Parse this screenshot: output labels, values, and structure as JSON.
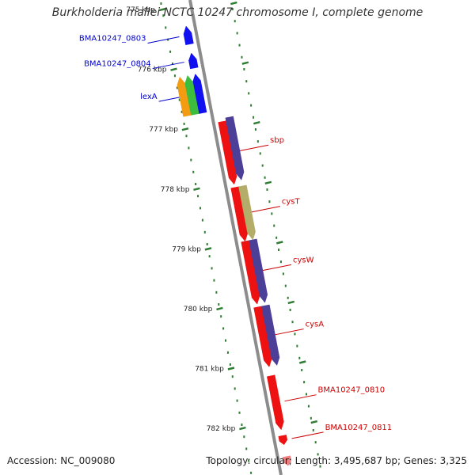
{
  "title": "Burkholderia mallei NCTC 10247 chromosome I, complete genome",
  "footer": {
    "accession": "Accession: NC_009080",
    "summary": "Topology: circular; Length: 3,495,687 bp; Genes: 3,325"
  },
  "colors": {
    "backbone": "#8c8c8c",
    "tick": "#2e7d32",
    "forward_label": "#0000cc",
    "reverse_label": "#cc0000"
  },
  "ticks": [
    {
      "label": "775 kbp",
      "pos": 775.0
    },
    {
      "label": "776 kbp",
      "pos": 776.0
    },
    {
      "label": "777 kbp",
      "pos": 777.0
    },
    {
      "label": "778 kbp",
      "pos": 778.0
    },
    {
      "label": "779 kbp",
      "pos": 779.0
    },
    {
      "label": "780 kbp",
      "pos": 780.0
    },
    {
      "label": "781 kbp",
      "pos": 781.0
    },
    {
      "label": "782 kbp",
      "pos": 782.0
    }
  ],
  "features": [
    {
      "name": "BMA10247_0803",
      "strand": "forward",
      "start": 775.25,
      "end": 775.55,
      "color": "#1010f0",
      "lane": 1
    },
    {
      "name": "BMA10247_0804",
      "strand": "forward",
      "start": 775.7,
      "end": 775.95,
      "color": "#1010f0",
      "lane": 1
    },
    {
      "name": "lexA",
      "strand": "forward",
      "start": 776.05,
      "end": 776.7,
      "color": "#1010f0",
      "lane": 1
    },
    {
      "name": "",
      "strand": "forward",
      "start": 776.05,
      "end": 776.7,
      "color": "#f39c12",
      "lane": 3
    },
    {
      "name": "",
      "strand": "forward",
      "start": 776.05,
      "end": 776.7,
      "color": "#3dbd3d",
      "lane": 2
    },
    {
      "name": "sbp",
      "strand": "reverse",
      "start": 776.9,
      "end": 777.95,
      "color": "#ee1111",
      "lane": 1
    },
    {
      "name": "",
      "strand": "reverse",
      "start": 776.85,
      "end": 777.9,
      "color": "#4c3f98",
      "lane": 2
    },
    {
      "name": "cysT",
      "strand": "reverse",
      "start": 778.0,
      "end": 778.9,
      "color": "#ee1111",
      "lane": 1
    },
    {
      "name": "",
      "strand": "reverse",
      "start": 778.0,
      "end": 778.9,
      "color": "#b4ad6a",
      "lane": 2
    },
    {
      "name": "cysW",
      "strand": "reverse",
      "start": 778.9,
      "end": 779.95,
      "color": "#ee1111",
      "lane": 1
    },
    {
      "name": "",
      "strand": "reverse",
      "start": 778.9,
      "end": 779.95,
      "color": "#4c3f98",
      "lane": 2
    },
    {
      "name": "cysA",
      "strand": "reverse",
      "start": 780.0,
      "end": 781.0,
      "color": "#ee1111",
      "lane": 1
    },
    {
      "name": "",
      "strand": "reverse",
      "start": 780.0,
      "end": 781.0,
      "color": "#4c3f98",
      "lane": 2
    },
    {
      "name": "BMA10247_0810",
      "strand": "reverse",
      "start": 781.15,
      "end": 782.05,
      "color": "#ee1111",
      "lane": 1
    },
    {
      "name": "BMA10247_0811",
      "strand": "reverse",
      "start": 782.15,
      "end": 782.3,
      "color": "#ee1111",
      "lane": 1
    },
    {
      "name": "",
      "strand": "reverse",
      "start": 782.5,
      "end": 782.65,
      "color": "#f08080",
      "lane": 1
    }
  ]
}
